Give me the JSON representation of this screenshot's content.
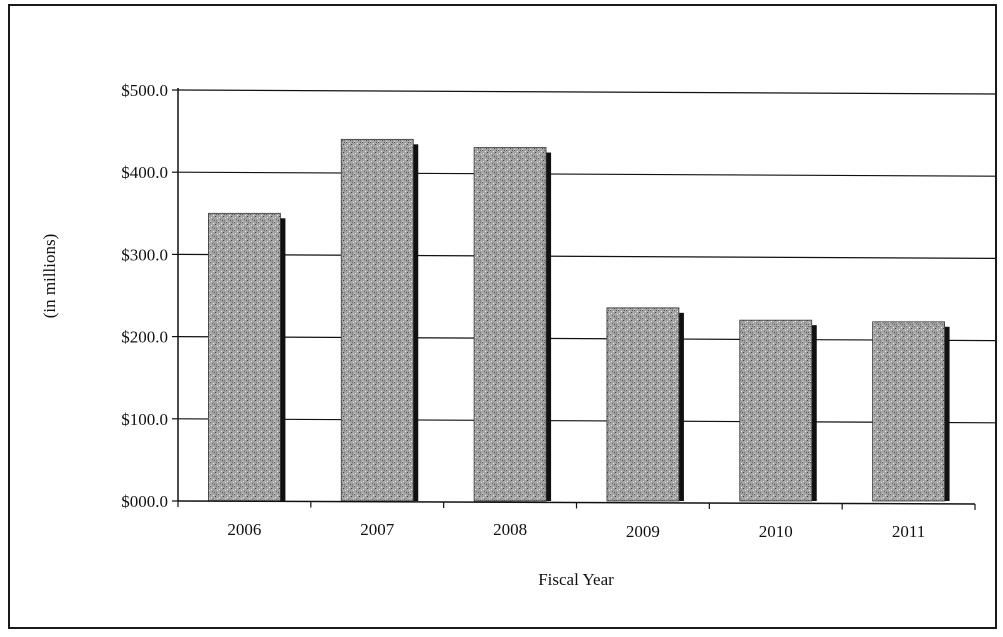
{
  "chart_data": {
    "type": "bar",
    "categories": [
      "2006",
      "2007",
      "2008",
      "2009",
      "2010",
      "2011"
    ],
    "values": [
      350,
      440,
      430,
      235,
      220,
      218
    ],
    "title": "",
    "xlabel": "Fiscal Year",
    "ylabel": "(in millions)",
    "ylim": [
      0,
      500
    ],
    "yticks": [
      0,
      100,
      200,
      300,
      400,
      500
    ],
    "ytick_labels": [
      "$000.0",
      "$100.0",
      "$200.0",
      "$300.0",
      "$400.0",
      "$500.0"
    ],
    "grid": true,
    "legend": "none",
    "colors": {
      "bar_fill": "#9a9a9a",
      "bar_shadow": "#111111",
      "gridline": "#111111",
      "axis": "#111111"
    }
  }
}
